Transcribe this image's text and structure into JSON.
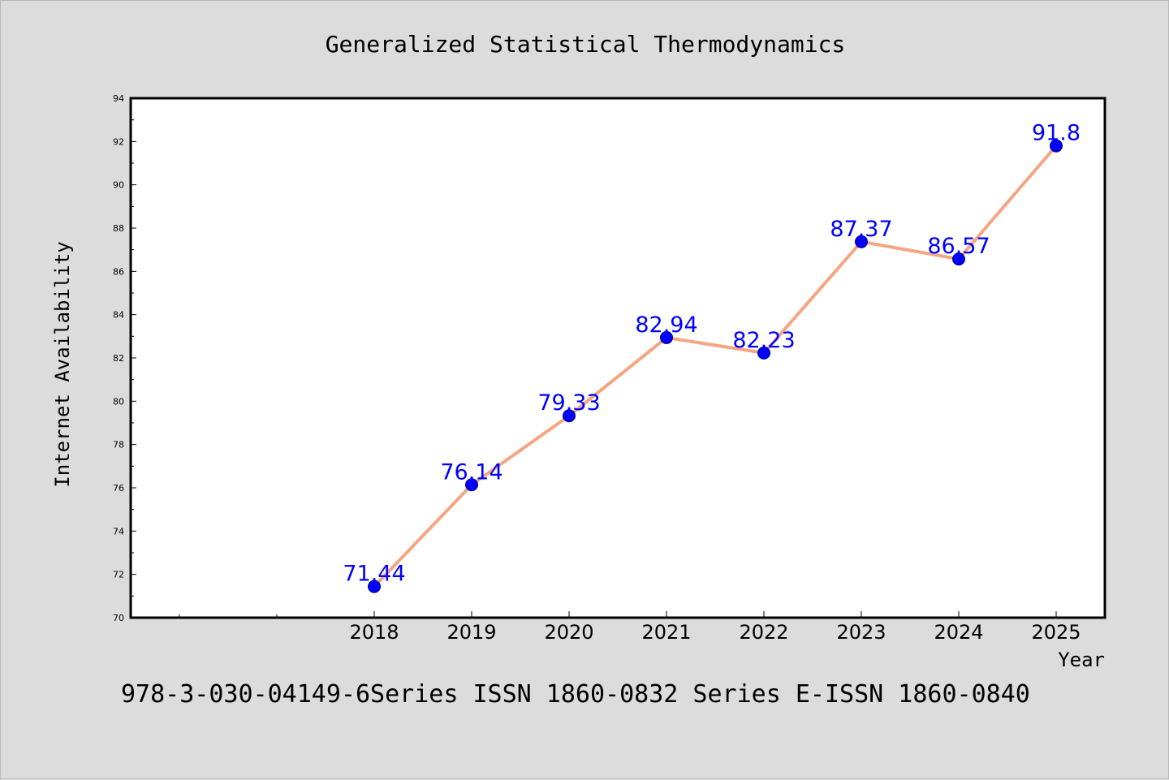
{
  "chart_data": {
    "type": "line",
    "title": "Generalized Statistical Thermodynamics",
    "xlabel": "Year",
    "ylabel": "Internet Availability",
    "footer": "978-3-030-04149-6Series ISSN 1860-0832 Series E-ISSN 1860-0840",
    "categories": [
      "2018",
      "2019",
      "2020",
      "2021",
      "2022",
      "2023",
      "2024",
      "2025"
    ],
    "series": [
      {
        "values": [
          71.44,
          76.14,
          79.33,
          82.94,
          82.23,
          87.37,
          86.57,
          91.8
        ],
        "labels": [
          "71.44",
          "76.14",
          "79.33",
          "82.94",
          "82.23",
          "87.37",
          "86.57",
          "91.8"
        ]
      }
    ],
    "ylim": [
      70,
      94
    ],
    "yticks": [
      "70",
      "72",
      "74",
      "76",
      "78",
      "80",
      "82",
      "84",
      "86",
      "88",
      "90",
      "92",
      "94"
    ],
    "grid": false,
    "colors": {
      "background": "#dcdcdc",
      "plot_area": "#ffffff",
      "line": "#f4a582",
      "marker": "#0000ff",
      "data_label": "#0000ff",
      "text": "#000000"
    }
  }
}
